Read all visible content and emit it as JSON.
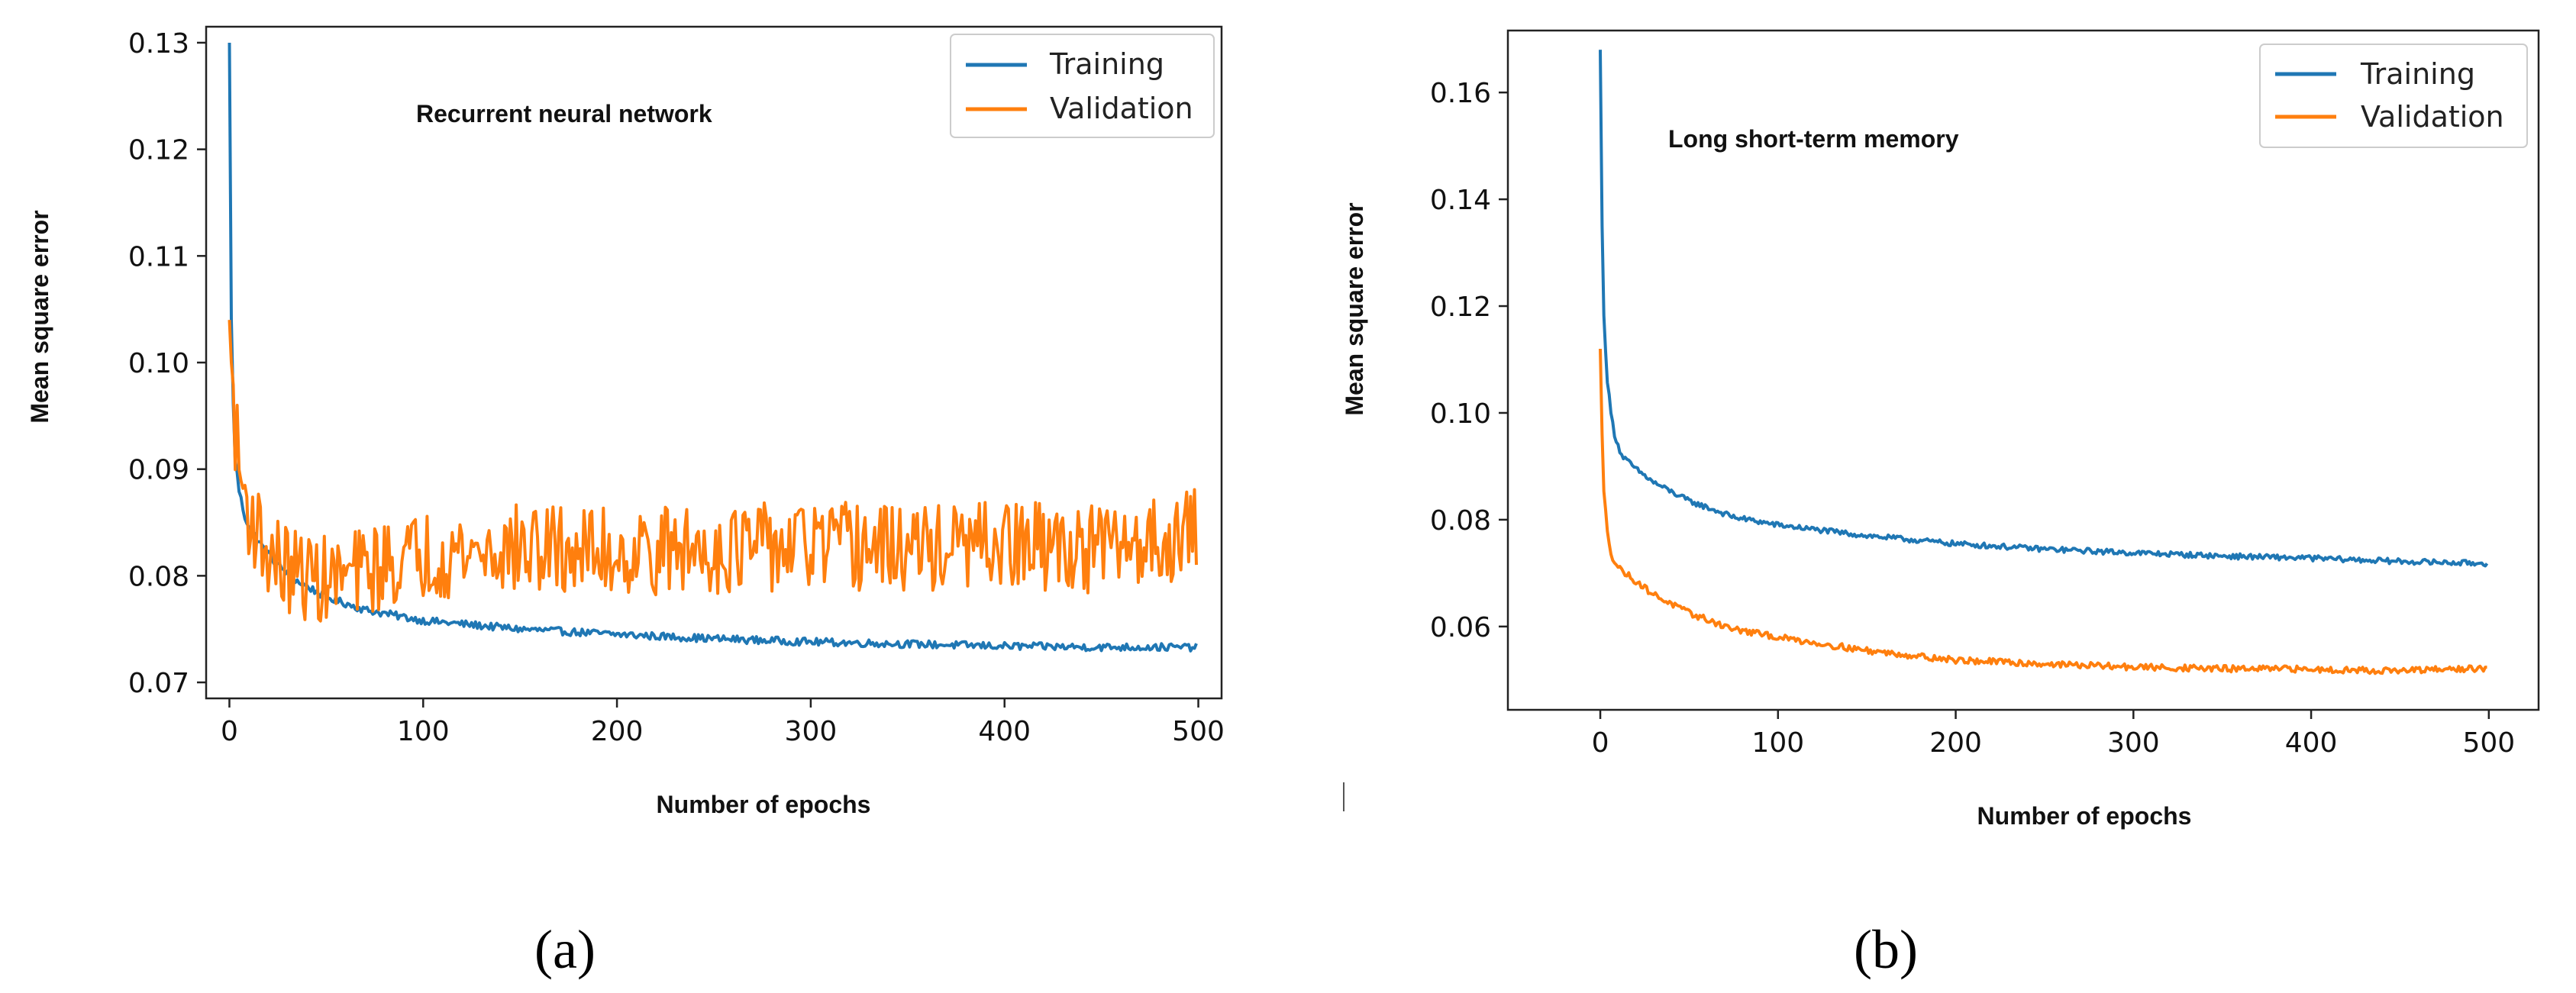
{
  "colors": {
    "training": "#1f77b4",
    "validation": "#ff7f0e"
  },
  "chart_data": [
    {
      "type": "line",
      "panel_label": "(a)",
      "title": "Recurrent neural network",
      "xlabel": "Number of epochs",
      "ylabel": "Mean square error",
      "xlim": [
        -12,
        512
      ],
      "ylim": [
        0.0685,
        0.1315
      ],
      "xticks": [
        0,
        100,
        200,
        300,
        400,
        500
      ],
      "yticks": [
        0.07,
        0.08,
        0.09,
        0.1,
        0.11,
        0.12,
        0.13
      ],
      "ytick_labels": [
        "0.07",
        "0.08",
        "0.09",
        "0.10",
        "0.11",
        "0.12",
        "0.13"
      ],
      "legend_position": "top-right",
      "series": [
        {
          "name": "Training",
          "color_key": "training",
          "x": [
            0,
            1,
            2,
            3,
            5,
            8,
            12,
            18,
            25,
            35,
            50,
            70,
            100,
            150,
            200,
            250,
            300,
            350,
            400,
            450,
            499
          ],
          "values": [
            0.13,
            0.104,
            0.096,
            0.091,
            0.088,
            0.0855,
            0.084,
            0.0825,
            0.081,
            0.0795,
            0.078,
            0.0768,
            0.0758,
            0.075,
            0.0745,
            0.0741,
            0.0738,
            0.0736,
            0.0734,
            0.0733,
            0.0733
          ],
          "noise": 0.00035
        },
        {
          "name": "Validation",
          "color_key": "validation",
          "x": [
            0,
            2,
            5,
            10,
            20,
            30,
            50,
            80,
            100,
            150,
            200,
            250,
            300,
            350,
            400,
            450,
            499
          ],
          "values": [
            0.104,
            0.096,
            0.09,
            0.086,
            0.082,
            0.0805,
            0.0795,
            0.081,
            0.082,
            0.0825,
            0.0822,
            0.0825,
            0.0828,
            0.0825,
            0.0828,
            0.0825,
            0.084
          ],
          "noise": 0.0042
        }
      ]
    },
    {
      "type": "line",
      "panel_label": "(b)",
      "title": "Long short-term memory",
      "xlabel": "Number of epochs",
      "ylabel": "Mean square error",
      "xlim": [
        -52,
        528
      ],
      "ylim": [
        0.0444,
        0.1716
      ],
      "xticks": [
        0,
        100,
        200,
        300,
        400,
        500
      ],
      "yticks": [
        0.06,
        0.08,
        0.1,
        0.12,
        0.14,
        0.16
      ],
      "ytick_labels": [
        "0.06",
        "0.08",
        "0.10",
        "0.12",
        "0.14",
        "0.16"
      ],
      "legend_position": "top-right",
      "series": [
        {
          "name": "Training",
          "color_key": "training",
          "x": [
            0,
            1,
            2,
            4,
            6,
            8,
            12,
            20,
            30,
            50,
            75,
            100,
            150,
            200,
            250,
            300,
            350,
            400,
            450,
            499
          ],
          "values": [
            0.168,
            0.135,
            0.118,
            0.106,
            0.1,
            0.096,
            0.092,
            0.0895,
            0.087,
            0.0835,
            0.0805,
            0.079,
            0.077,
            0.0755,
            0.0745,
            0.0738,
            0.0732,
            0.0728,
            0.0722,
            0.0718
          ],
          "noise": 0.0005
        },
        {
          "name": "Validation",
          "color_key": "validation",
          "x": [
            0,
            1,
            2,
            4,
            6,
            8,
            12,
            20,
            30,
            50,
            75,
            100,
            150,
            200,
            250,
            300,
            350,
            400,
            450,
            499
          ],
          "values": [
            0.112,
            0.096,
            0.085,
            0.078,
            0.074,
            0.072,
            0.0705,
            0.0685,
            0.066,
            0.0625,
            0.0595,
            0.058,
            0.0555,
            0.0537,
            0.053,
            0.0524,
            0.0521,
            0.052,
            0.0517,
            0.0522
          ],
          "noise": 0.0006
        }
      ]
    }
  ]
}
